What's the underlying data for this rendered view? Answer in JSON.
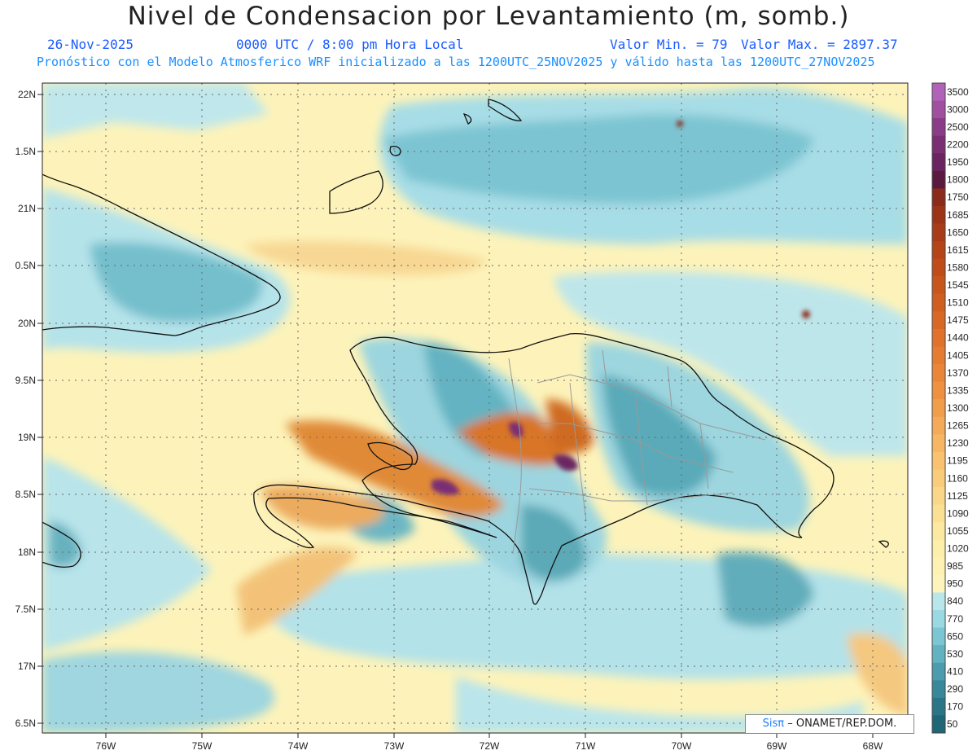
{
  "header": {
    "title": "Nivel de Condensacion por Levantamiento (m, somb.)",
    "date": "26-Nov-2025",
    "time": "0000 UTC / 8:00 pm Hora Local",
    "min": "Valor Min. = 79",
    "max": "Valor Max. = 2897.37",
    "forecast": "Pronóstico con el Modelo Atmosferico WRF inicializado a las 1200UTC_25NOV2025 y válido hasta las  1200UTC_27NOV2025"
  },
  "axes": {
    "lat_labels": [
      "22N",
      "1.5N",
      "21N",
      "0.5N",
      "20N",
      "9.5N",
      "19N",
      "8.5N",
      "18N",
      "7.5N",
      "17N",
      "6.5N"
    ],
    "lon_labels": [
      "76W",
      "75W",
      "74W",
      "73W",
      "72W",
      "71W",
      "70W",
      "69W",
      "68W"
    ]
  },
  "legend": {
    "levels": [
      "3500",
      "3000",
      "2500",
      "2200",
      "1950",
      "1800",
      "1750",
      "1685",
      "1650",
      "1615",
      "1580",
      "1545",
      "1510",
      "1475",
      "1440",
      "1405",
      "1370",
      "1335",
      "1300",
      "1265",
      "1230",
      "1195",
      "1160",
      "1125",
      "1090",
      "1055",
      "1020",
      "985",
      "950",
      "840",
      "770",
      "650",
      "530",
      "410",
      "290",
      "170",
      "50"
    ],
    "colors": [
      "#b063b8",
      "#a0509f",
      "#8a3c88",
      "#7a2e74",
      "#6a2560",
      "#5a1a40",
      "#8a2a1a",
      "#9c3418",
      "#a83c18",
      "#b54418",
      "#c04c1a",
      "#c8561c",
      "#d05e20",
      "#d86826",
      "#e0722c",
      "#e57c32",
      "#ea863a",
      "#ee9242",
      "#f19e4c",
      "#f4aa58",
      "#f6b664",
      "#f8c270",
      "#f9cc7c",
      "#fad688",
      "#fbe094",
      "#fce8a0",
      "#fdeeaa",
      "#fdf2b4",
      "#fdf4bd",
      "#b8e6ea",
      "#9ad8e2",
      "#7cc6d4",
      "#62b2c2",
      "#4a9cae",
      "#38889a",
      "#2a7686",
      "#1f6676"
    ]
  },
  "credit": {
    "sis": "Sisπ",
    "rest": "– ONAMET/REP.DOM."
  }
}
